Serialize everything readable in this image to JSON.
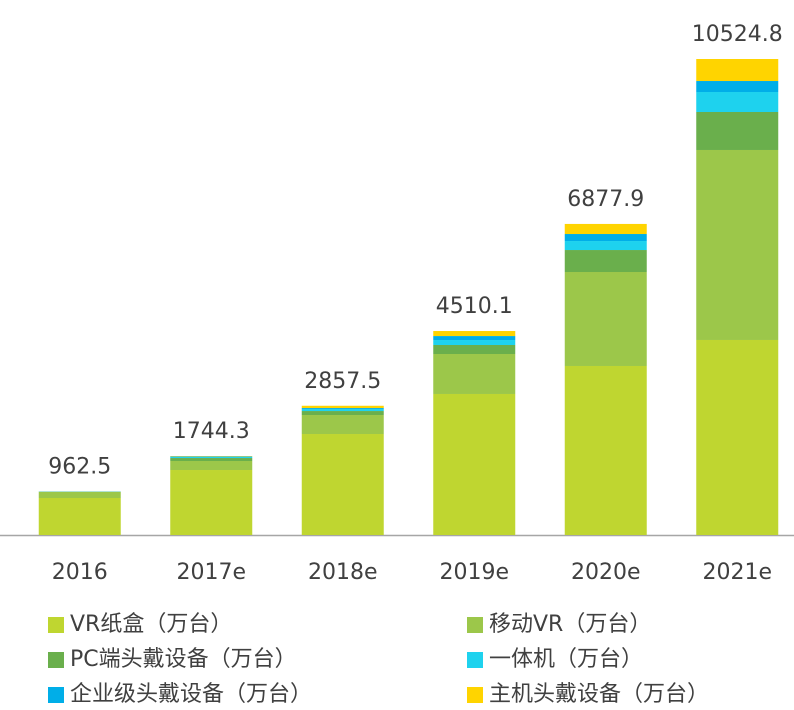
{
  "chart_data": {
    "type": "stacked_bar",
    "categories": [
      "2016",
      "2017e",
      "2018e",
      "2019e",
      "2020e",
      "2021e"
    ],
    "totals": [
      962.5,
      1744.3,
      2857.5,
      4510.1,
      6877.9,
      10524.8
    ],
    "series": [
      {
        "name": "VR纸盒（万台）",
        "color": "#bfd630",
        "values": [
          818,
          1437,
          2233,
          3118,
          3737,
          4312
        ]
      },
      {
        "name": "移动VR（万台）",
        "color": "#9cc74a",
        "values": [
          133,
          199,
          420,
          884,
          2078,
          4201
        ]
      },
      {
        "name": "PC端头戴设备（万台）",
        "color": "#6aaf4c",
        "values": [
          7,
          66,
          88,
          199,
          486,
          840
        ]
      },
      {
        "name": "一体机（万台）",
        "color": "#1ed2ee",
        "values": [
          3,
          22,
          44,
          110,
          199,
          442
        ]
      },
      {
        "name": "企业级头戴设备（万台）",
        "color": "#00aee8",
        "values": [
          1.5,
          11,
          22,
          88,
          155,
          243
        ]
      },
      {
        "name": "主机头戴设备（万台）",
        "color": "#ffd400",
        "values": [
          0,
          9.3,
          50.5,
          111.1,
          222.9,
          486.8
        ]
      }
    ]
  }
}
